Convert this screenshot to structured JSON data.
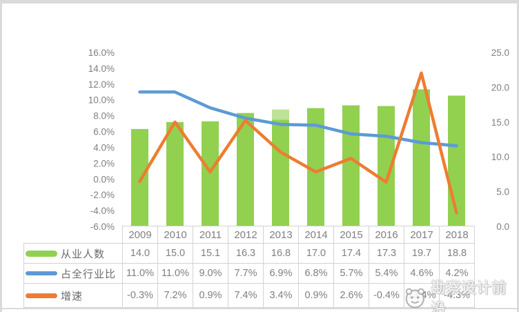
{
  "chart_data": {
    "type": "combo",
    "title": "",
    "categories": [
      "2009",
      "2010",
      "2011",
      "2012",
      "2013",
      "2014",
      "2015",
      "2016",
      "2017",
      "2018"
    ],
    "series": [
      {
        "name": "从业人数",
        "type": "bar",
        "axis": "right",
        "color": "#92D050",
        "values": [
          14.0,
          15.0,
          15.1,
          16.3,
          16.8,
          17.0,
          17.4,
          17.3,
          19.7,
          18.8
        ]
      },
      {
        "name": "占全行业比",
        "type": "line",
        "axis": "left",
        "color": "#5B9BD5",
        "values": [
          11.0,
          11.0,
          9.0,
          7.7,
          6.9,
          6.8,
          5.7,
          5.4,
          4.6,
          4.2
        ]
      },
      {
        "name": "增速",
        "type": "line",
        "axis": "left",
        "color": "#ED7D31",
        "values": [
          -0.3,
          7.2,
          0.9,
          7.4,
          3.4,
          0.9,
          2.6,
          -0.4,
          13.4,
          -4.3
        ]
      }
    ],
    "left_axis": {
      "min": -6,
      "max": 16,
      "step": 2,
      "ticks": [
        "16.0%",
        "14.0%",
        "12.0%",
        "10.0%",
        "8.0%",
        "6.0%",
        "4.0%",
        "2.0%",
        "0.0%",
        "-2.0%",
        "-4.0%",
        "-6.0%"
      ]
    },
    "right_axis": {
      "min": 0,
      "max": 25,
      "step": 5,
      "ticks": [
        "25.0",
        "20.0",
        "15.0",
        "10.0",
        "5.0",
        "0.0"
      ]
    },
    "grid": false,
    "legend_position": "table-left"
  },
  "table": {
    "rows": [
      {
        "label": "从业人数",
        "swatch": "bar-green",
        "values": [
          "14.0",
          "15.0",
          "15.1",
          "16.3",
          "16.8",
          "17.0",
          "17.4",
          "17.3",
          "19.7",
          "18.8"
        ]
      },
      {
        "label": "占全行业比",
        "swatch": "line-blue",
        "values": [
          "11.0%",
          "11.0%",
          "9.0%",
          "7.7%",
          "6.9%",
          "6.8%",
          "5.7%",
          "5.4%",
          "4.6%",
          "4.2%"
        ]
      },
      {
        "label": "增速",
        "swatch": "line-orange",
        "values": [
          "-0.3%",
          "7.2%",
          "0.9%",
          "7.4%",
          "3.4%",
          "0.9%",
          "2.6%",
          "-0.4%",
          "13.4%",
          "-4.3%"
        ]
      }
    ]
  },
  "watermark": {
    "text": "勘察设计前沿"
  },
  "colors": {
    "bar_green": "#92D050",
    "line_blue": "#5B9BD5",
    "line_orange": "#ED7D31",
    "axis_text": "#7f7f7f",
    "table_border": "#d2d2d2",
    "frame": "#dadada"
  }
}
